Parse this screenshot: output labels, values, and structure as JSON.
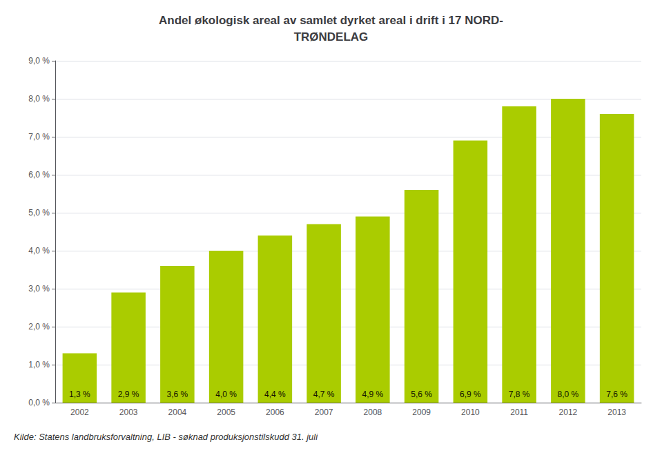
{
  "chart_data": {
    "type": "bar",
    "title": "Andel økologisk areal av samlet dyrket areal i drift i 17 NORD-\nTRØNDELAG",
    "caption": "Kilde: Statens landbruksforvaltning, LIB - søknad produksjonstilskudd 31. juli",
    "categories": [
      "2002",
      "2003",
      "2004",
      "2005",
      "2006",
      "2007",
      "2008",
      "2009",
      "2010",
      "2011",
      "2012",
      "2013"
    ],
    "values": [
      1.3,
      2.9,
      3.6,
      4.0,
      4.4,
      4.7,
      4.9,
      5.6,
      6.9,
      7.8,
      8.0,
      7.6
    ],
    "value_labels": [
      "1,3 %",
      "2,9 %",
      "3,6 %",
      "4,0 %",
      "4,4 %",
      "4,7 %",
      "4,9 %",
      "5,6 %",
      "6,9 %",
      "7,8 %",
      "8,0 %",
      "7,6 %"
    ],
    "data_labels": true,
    "color": "#aacc00",
    "ylim": [
      0,
      9.0
    ],
    "yticks": [
      {
        "value": 0.0,
        "label": "0,0 %"
      },
      {
        "value": 1.0,
        "label": "1,0 %"
      },
      {
        "value": 2.0,
        "label": "2,0 %"
      },
      {
        "value": 3.0,
        "label": "3,0 %"
      },
      {
        "value": 4.0,
        "label": "4,0 %"
      },
      {
        "value": 5.0,
        "label": "5,0 %"
      },
      {
        "value": 6.0,
        "label": "6,0 %"
      },
      {
        "value": 7.0,
        "label": "7,0 %"
      },
      {
        "value": 8.0,
        "label": "8,0 %"
      },
      {
        "value": 9.0,
        "label": "9,0 %"
      }
    ],
    "grid": true
  }
}
